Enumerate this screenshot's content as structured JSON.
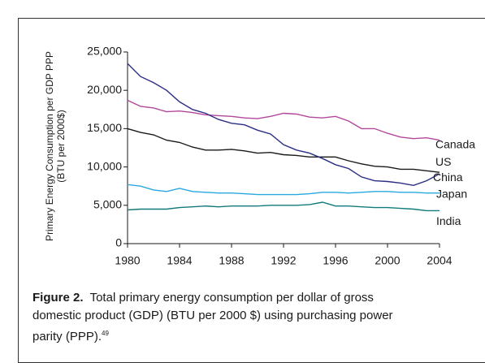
{
  "chart_data": {
    "type": "line",
    "ylabel": [
      "Primary Energy Consumption per GDP PPP",
      "(BTU per 2000$)"
    ],
    "x": [
      1980,
      1981,
      1982,
      1983,
      1984,
      1985,
      1986,
      1987,
      1988,
      1989,
      1990,
      1991,
      1992,
      1993,
      1994,
      1995,
      1996,
      1997,
      1998,
      1999,
      2000,
      2001,
      2002,
      2003,
      2004
    ],
    "xlim": [
      1980,
      2004
    ],
    "xticks": [
      1980,
      1984,
      1988,
      1992,
      1996,
      2000,
      2004
    ],
    "ylim": [
      0,
      25000
    ],
    "yticks": [
      0,
      {
        "value": 5000,
        "label": "5,000"
      },
      {
        "value": 10000,
        "label": "10,000"
      },
      {
        "value": 15000,
        "label": "15,000"
      },
      {
        "value": 20000,
        "label": "20,000"
      },
      {
        "value": 25000,
        "label": "25,000"
      }
    ],
    "grid": false,
    "series": [
      {
        "name": "Canada",
        "color": "#b5479a",
        "values": [
          18700,
          17900,
          17700,
          17200,
          17300,
          17100,
          16800,
          16700,
          16600,
          16400,
          16300,
          16600,
          17000,
          16900,
          16500,
          16400,
          16600,
          16000,
          15000,
          15000,
          14400,
          13900,
          13700,
          13800,
          13500
        ]
      },
      {
        "name": "US",
        "color": "#1a1a1a",
        "values": [
          15000,
          14500,
          14200,
          13500,
          13200,
          12600,
          12200,
          12200,
          12300,
          12100,
          11800,
          11900,
          11600,
          11500,
          11300,
          11300,
          11300,
          10800,
          10400,
          10100,
          10000,
          9700,
          9700,
          9500,
          9300
        ]
      },
      {
        "name": "China",
        "color": "#2b2e83",
        "values": [
          23500,
          21800,
          21000,
          20000,
          18500,
          17500,
          17000,
          16200,
          15700,
          15500,
          14800,
          14300,
          12900,
          12200,
          11800,
          11100,
          10300,
          9800,
          8700,
          8200,
          8100,
          7900,
          7600,
          8200,
          9100
        ]
      },
      {
        "name": "Japan",
        "color": "#29a8e0",
        "values": [
          7700,
          7500,
          7000,
          6800,
          7200,
          6800,
          6700,
          6600,
          6600,
          6500,
          6400,
          6400,
          6400,
          6400,
          6500,
          6700,
          6700,
          6600,
          6700,
          6800,
          6800,
          6700,
          6700,
          6600,
          6600
        ]
      },
      {
        "name": "India",
        "color": "#117a7a",
        "values": [
          4400,
          4500,
          4500,
          4500,
          4700,
          4800,
          4900,
          4800,
          4900,
          4900,
          4900,
          5000,
          5000,
          5000,
          5100,
          5400,
          4900,
          4900,
          4800,
          4700,
          4700,
          4600,
          4500,
          4300,
          4300
        ]
      }
    ]
  },
  "caption": {
    "label": "Figure 2.",
    "text": "Total primary energy consumption per dollar of gross domestic product (GDP) (BTU per 2000 $) using purchasing power parity (PPP).",
    "ref": "49"
  }
}
